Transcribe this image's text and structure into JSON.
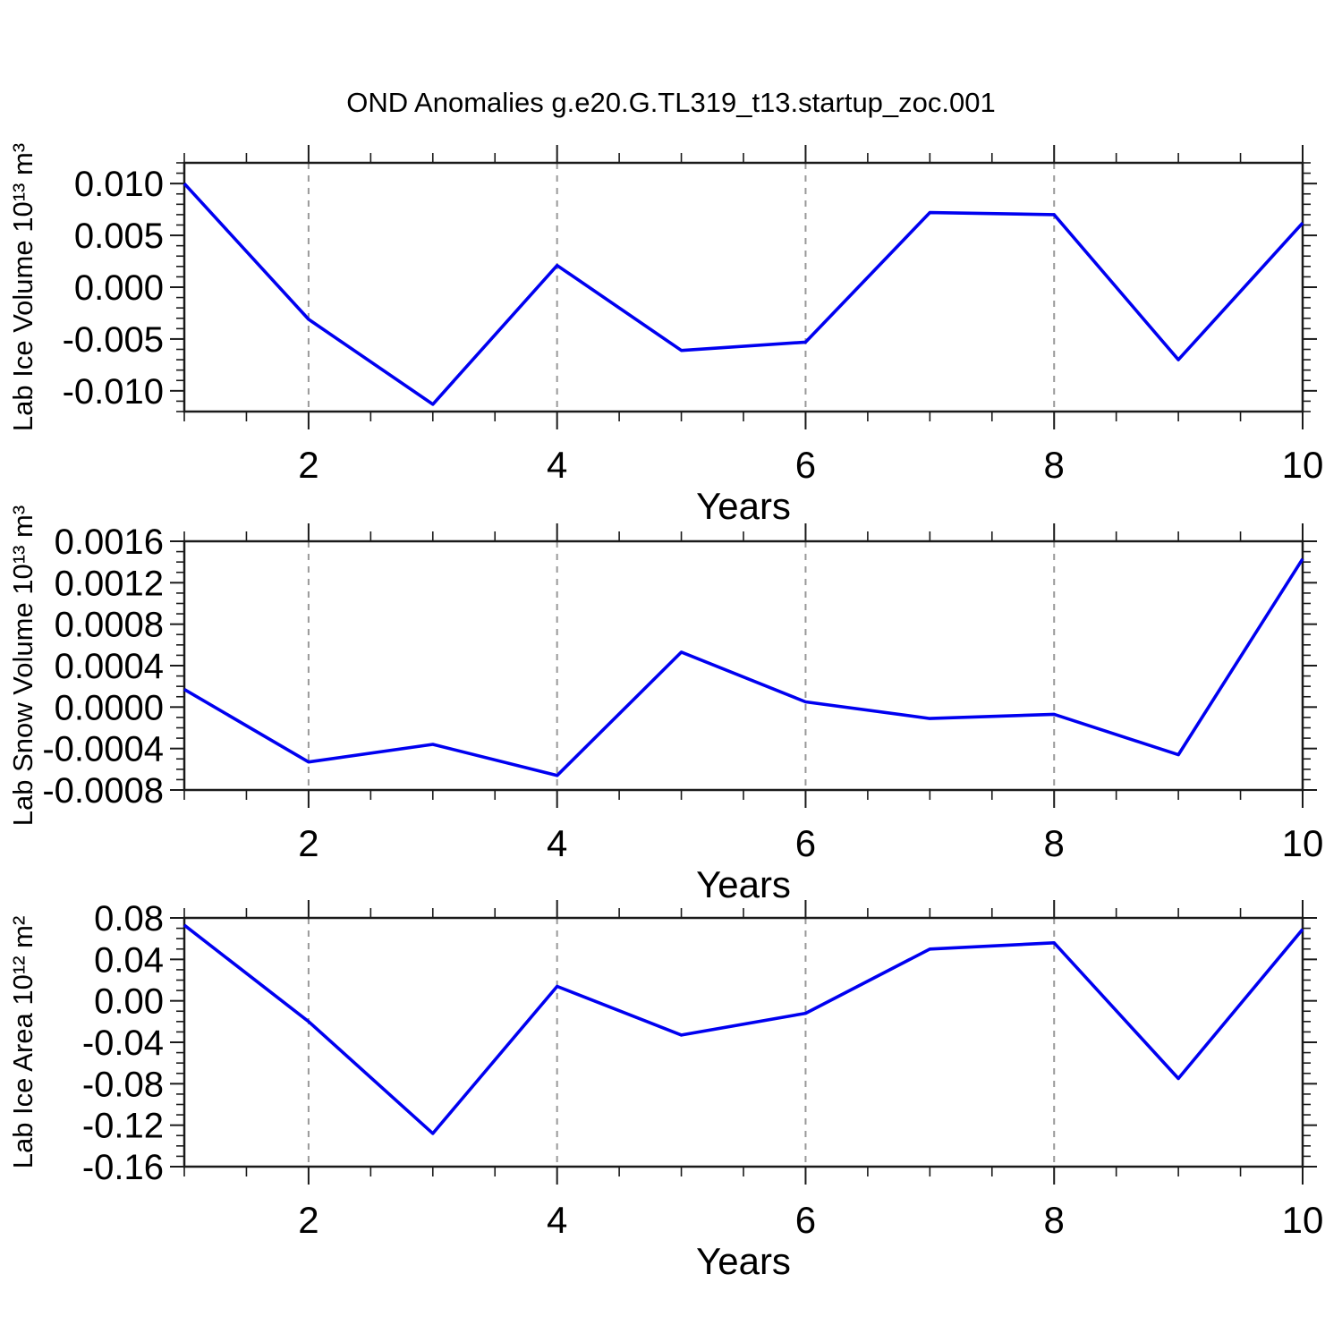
{
  "title": "OND Anomalies g.e20.G.TL319_t13.startup_zoc.001",
  "colors": {
    "line": "#0000f0",
    "frame": "#1a1a1a",
    "grid": "#999999",
    "background": "#ffffff",
    "text": "#000000"
  },
  "chart_data": [
    {
      "type": "line",
      "title": "",
      "ylabel": "Lab Ice Volume 10¹³ m³",
      "xlabel": "Years",
      "x": [
        1,
        2,
        3,
        4,
        5,
        6,
        7,
        8,
        9,
        10
      ],
      "values": [
        0.01,
        -0.0031,
        -0.0113,
        0.0021,
        -0.0061,
        -0.0053,
        0.0072,
        0.007,
        -0.007,
        0.0062
      ],
      "xlim": [
        1,
        10
      ],
      "ylim": [
        -0.012,
        0.012
      ],
      "xtick_values": [
        2,
        4,
        6,
        8,
        10
      ],
      "xtick_labels": [
        "2",
        "4",
        "6",
        "8",
        "10"
      ],
      "x_minor_step": 0.5,
      "ytick_values": [
        0.01,
        0.005,
        0.0,
        -0.005,
        -0.01
      ],
      "ytick_labels": [
        "0.010",
        "0.005",
        "0.000",
        "-0.005",
        "-0.010"
      ],
      "y_minor_step": 0.001,
      "grid_x_values": [
        2,
        4,
        6,
        8
      ],
      "grid_style": "vertical-dashed",
      "legend": "none"
    },
    {
      "type": "line",
      "title": "",
      "ylabel": "Lab Snow Volume 10¹³ m³",
      "xlabel": "Years",
      "x": [
        1,
        2,
        3,
        4,
        5,
        6,
        7,
        8,
        9,
        10
      ],
      "values": [
        0.00017,
        -0.00053,
        -0.00036,
        -0.00066,
        0.00053,
        5e-05,
        -0.00011,
        -7e-05,
        -0.00046,
        0.00143
      ],
      "xlim": [
        1,
        10
      ],
      "ylim": [
        -0.0008,
        0.0016
      ],
      "xtick_values": [
        2,
        4,
        6,
        8,
        10
      ],
      "xtick_labels": [
        "2",
        "4",
        "6",
        "8",
        "10"
      ],
      "x_minor_step": 0.5,
      "ytick_values": [
        0.0016,
        0.0012,
        0.0008,
        0.0004,
        0.0,
        -0.0004,
        -0.0008
      ],
      "ytick_labels": [
        "0.0016",
        "0.0012",
        "0.0008",
        "0.0004",
        "0.0000",
        "-0.0004",
        "-0.0008"
      ],
      "y_minor_step": 0.0001,
      "grid_x_values": [
        2,
        4,
        6,
        8
      ],
      "grid_style": "vertical-dashed",
      "legend": "none"
    },
    {
      "type": "line",
      "title": "",
      "ylabel": "Lab Ice Area 10¹² m²",
      "xlabel": "Years",
      "x": [
        1,
        2,
        3,
        4,
        5,
        6,
        7,
        8,
        9,
        10
      ],
      "values": [
        0.073,
        -0.02,
        -0.128,
        0.014,
        -0.033,
        -0.012,
        0.05,
        0.056,
        -0.075,
        0.069
      ],
      "xlim": [
        1,
        10
      ],
      "ylim": [
        -0.16,
        0.08
      ],
      "xtick_values": [
        2,
        4,
        6,
        8,
        10
      ],
      "xtick_labels": [
        "2",
        "4",
        "6",
        "8",
        "10"
      ],
      "x_minor_step": 0.5,
      "ytick_values": [
        0.08,
        0.04,
        0.0,
        -0.04,
        -0.08,
        -0.12,
        -0.16
      ],
      "ytick_labels": [
        "0.08",
        "0.04",
        "0.00",
        "-0.04",
        "-0.08",
        "-0.12",
        "-0.16"
      ],
      "y_minor_step": 0.01,
      "grid_x_values": [
        2,
        4,
        6,
        8
      ],
      "grid_style": "vertical-dashed",
      "legend": "none"
    }
  ]
}
